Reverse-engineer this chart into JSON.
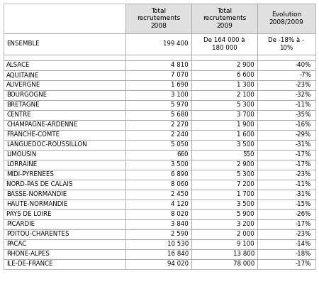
{
  "col_headers": [
    "Total\nrecrutements\n2008",
    "Total\nrecrutements\n2009",
    "Evolution\n2008/2009"
  ],
  "ensemble_row": [
    "ENSEMBLE",
    "199 400",
    "De 164 000 à\n180 000",
    "De -18% à -\n10%"
  ],
  "rows": [
    [
      "ALSACE",
      "4 810",
      "2 900",
      "-40%"
    ],
    [
      "AQUITAINE",
      "7 070",
      "6 600",
      "-7%"
    ],
    [
      "AUVERGNE",
      "1 690",
      "1 300",
      "-23%"
    ],
    [
      "BOURGOGNE",
      "3 100",
      "2 100",
      "-32%"
    ],
    [
      "BRETAGNE",
      "5 970",
      "5 300",
      "-11%"
    ],
    [
      "CENTRE",
      "5 680",
      "3 700",
      "-35%"
    ],
    [
      "CHAMPAGNE-ARDENNE",
      "2 270",
      "1 900",
      "-16%"
    ],
    [
      "FRANCHE-COMTE",
      "2 240",
      "1 600",
      "-29%"
    ],
    [
      "LANGUEDOC-ROUSSILLON",
      "5 050",
      "3 500",
      "-31%"
    ],
    [
      "LIMOUSIN",
      "660",
      "550",
      "-17%"
    ],
    [
      "LORRAINE",
      "3 500",
      "2 900",
      "-17%"
    ],
    [
      "MIDI-PYRENEES",
      "6 890",
      "5 300",
      "-23%"
    ],
    [
      "NORD-PAS DE CALAIS",
      "8 060",
      "7 200",
      "-11%"
    ],
    [
      "BASSE-NORMANDIE",
      "2 450",
      "1 700",
      "-31%"
    ],
    [
      "HAUTE-NORMANDIE",
      "4 120",
      "3 500",
      "-15%"
    ],
    [
      "PAYS DE LOIRE",
      "8 020",
      "5 900",
      "-26%"
    ],
    [
      "PICARDIE",
      "3 840",
      "3 200",
      "-17%"
    ],
    [
      "POITOU-CHARENTES",
      "2 590",
      "2 000",
      "-23%"
    ],
    [
      "PACAC",
      "10 530",
      "9 100",
      "-14%"
    ],
    [
      "RHONE-ALPES",
      "16 840",
      "13 800",
      "-18%"
    ],
    [
      "ILE-DE-FRANCE",
      "94 020",
      "78 000",
      "-17%"
    ]
  ],
  "bg_header": "#e0e0e0",
  "bg_white": "#ffffff",
  "border_color": "#999999",
  "text_color": "#000000",
  "font_size": 6.2,
  "header_font_size": 6.5,
  "fig_width": 4.5,
  "fig_height": 4.0,
  "dpi": 100
}
